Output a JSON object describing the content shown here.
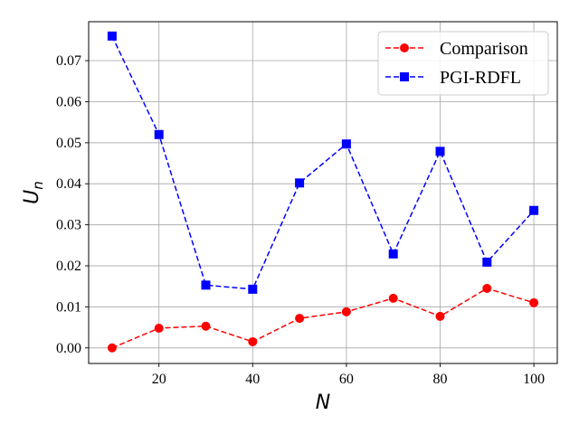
{
  "chart_data": {
    "type": "line",
    "title": "",
    "xlabel": "N",
    "ylabel_main": "U",
    "ylabel_sub": "n",
    "xlim": [
      5,
      105
    ],
    "ylim": [
      -0.0038,
      0.0795
    ],
    "xticks": [
      20,
      40,
      60,
      80,
      100
    ],
    "yticks": [
      0.0,
      0.01,
      0.02,
      0.03,
      0.04,
      0.05,
      0.06,
      0.07
    ],
    "ytick_labels": [
      "0.00",
      "0.01",
      "0.02",
      "0.03",
      "0.04",
      "0.05",
      "0.06",
      "0.07"
    ],
    "grid": true,
    "legend_position": "upper-right",
    "x": [
      10,
      20,
      30,
      40,
      50,
      60,
      70,
      80,
      90,
      100
    ],
    "series": [
      {
        "name": "Comparison",
        "color": "#ff0000",
        "marker": "circle",
        "linestyle": "dashed",
        "values": [
          0.0,
          0.0048,
          0.0053,
          0.0015,
          0.0072,
          0.0088,
          0.0121,
          0.0077,
          0.0145,
          0.011
        ]
      },
      {
        "name": "PGI-RDFL",
        "color": "#0000ff",
        "marker": "square",
        "linestyle": "dashed",
        "values": [
          0.076,
          0.052,
          0.0153,
          0.0143,
          0.0402,
          0.0497,
          0.0229,
          0.0479,
          0.0209,
          0.0335
        ]
      }
    ]
  }
}
